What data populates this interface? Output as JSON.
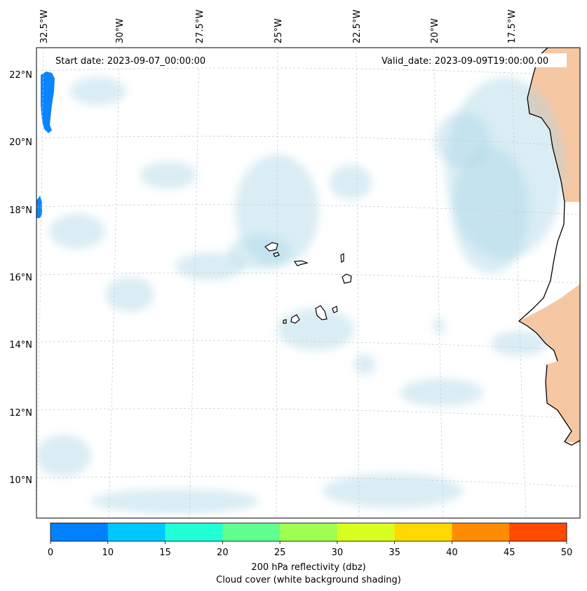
{
  "map": {
    "start_date_label": "Start date: 2023-09-07_00:00:00",
    "valid_date_label": "Valid_date: 2023-09-09T19:00:00.00",
    "lon_labels": [
      "32.5°W",
      "30°W",
      "27.5°W",
      "25°W",
      "22.5°W",
      "20°W",
      "17.5°W"
    ],
    "lat_labels": [
      "22°N",
      "20°N",
      "18°N",
      "16°N",
      "14°N",
      "12°N",
      "10°N"
    ],
    "land_color": "#f6c7a3",
    "cloud_color": "#add8e6",
    "radar_color": "#0a84ff"
  },
  "colorbar": {
    "ticks": [
      "0",
      "10",
      "15",
      "20",
      "25",
      "30",
      "35",
      "40",
      "45",
      "50"
    ],
    "colors": [
      "#0080ff",
      "#00c8ff",
      "#20ffd8",
      "#60ff90",
      "#a0ff50",
      "#d8ff20",
      "#ffd800",
      "#ff8c00",
      "#ff4a00"
    ],
    "label_line1": "200 hPa reflectivity (dbz)",
    "label_line2": "Cloud cover (white background shading)"
  }
}
